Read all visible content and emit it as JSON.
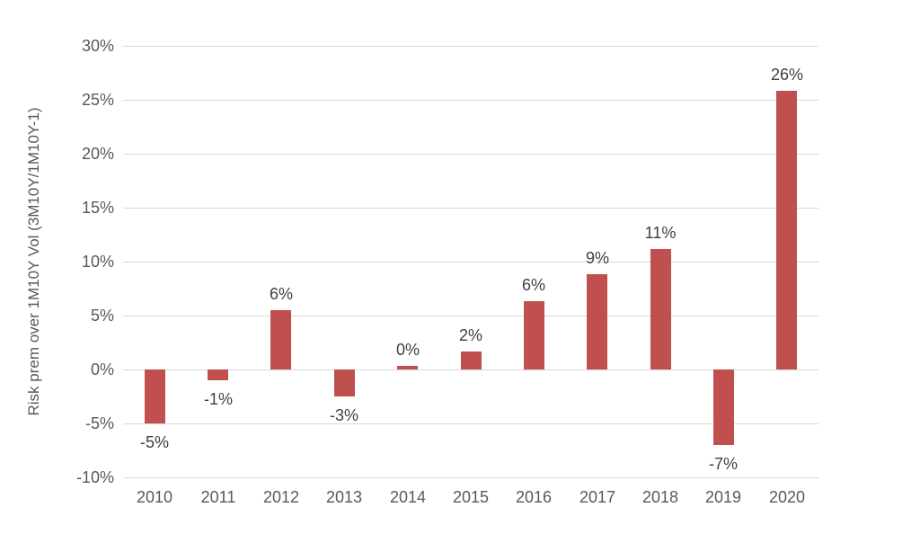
{
  "chart_data": {
    "type": "bar",
    "title": "",
    "xlabel": "",
    "ylabel": "Risk prem over 1M10Y Vol (3M10Y/1M10Y-1)",
    "categories": [
      "2010",
      "2011",
      "2012",
      "2013",
      "2014",
      "2015",
      "2016",
      "2017",
      "2018",
      "2019",
      "2020"
    ],
    "values": [
      -5,
      -1,
      5.5,
      -2.5,
      0.3,
      1.7,
      6.3,
      8.8,
      11.2,
      -7,
      25.8
    ],
    "data_labels": [
      "-5%",
      "-1%",
      "6%",
      "-3%",
      "0%",
      "2%",
      "6%",
      "9%",
      "11%",
      "-7%",
      "26%"
    ],
    "ylim": [
      -10,
      30
    ],
    "ytick_values": [
      30,
      25,
      20,
      15,
      10,
      5,
      0,
      -5,
      -10
    ],
    "ytick_labels": [
      "30%",
      "25%",
      "20%",
      "15%",
      "10%",
      "5%",
      "0%",
      "-5%",
      "-10%"
    ],
    "grid": true,
    "legend_position": "none",
    "colors": {
      "bar": "#c0504d",
      "gridline": "#d9d9d9",
      "tick_text": "#595959",
      "data_label_text": "#404040",
      "axis_title_text": "#595959",
      "background": "#ffffff"
    }
  }
}
